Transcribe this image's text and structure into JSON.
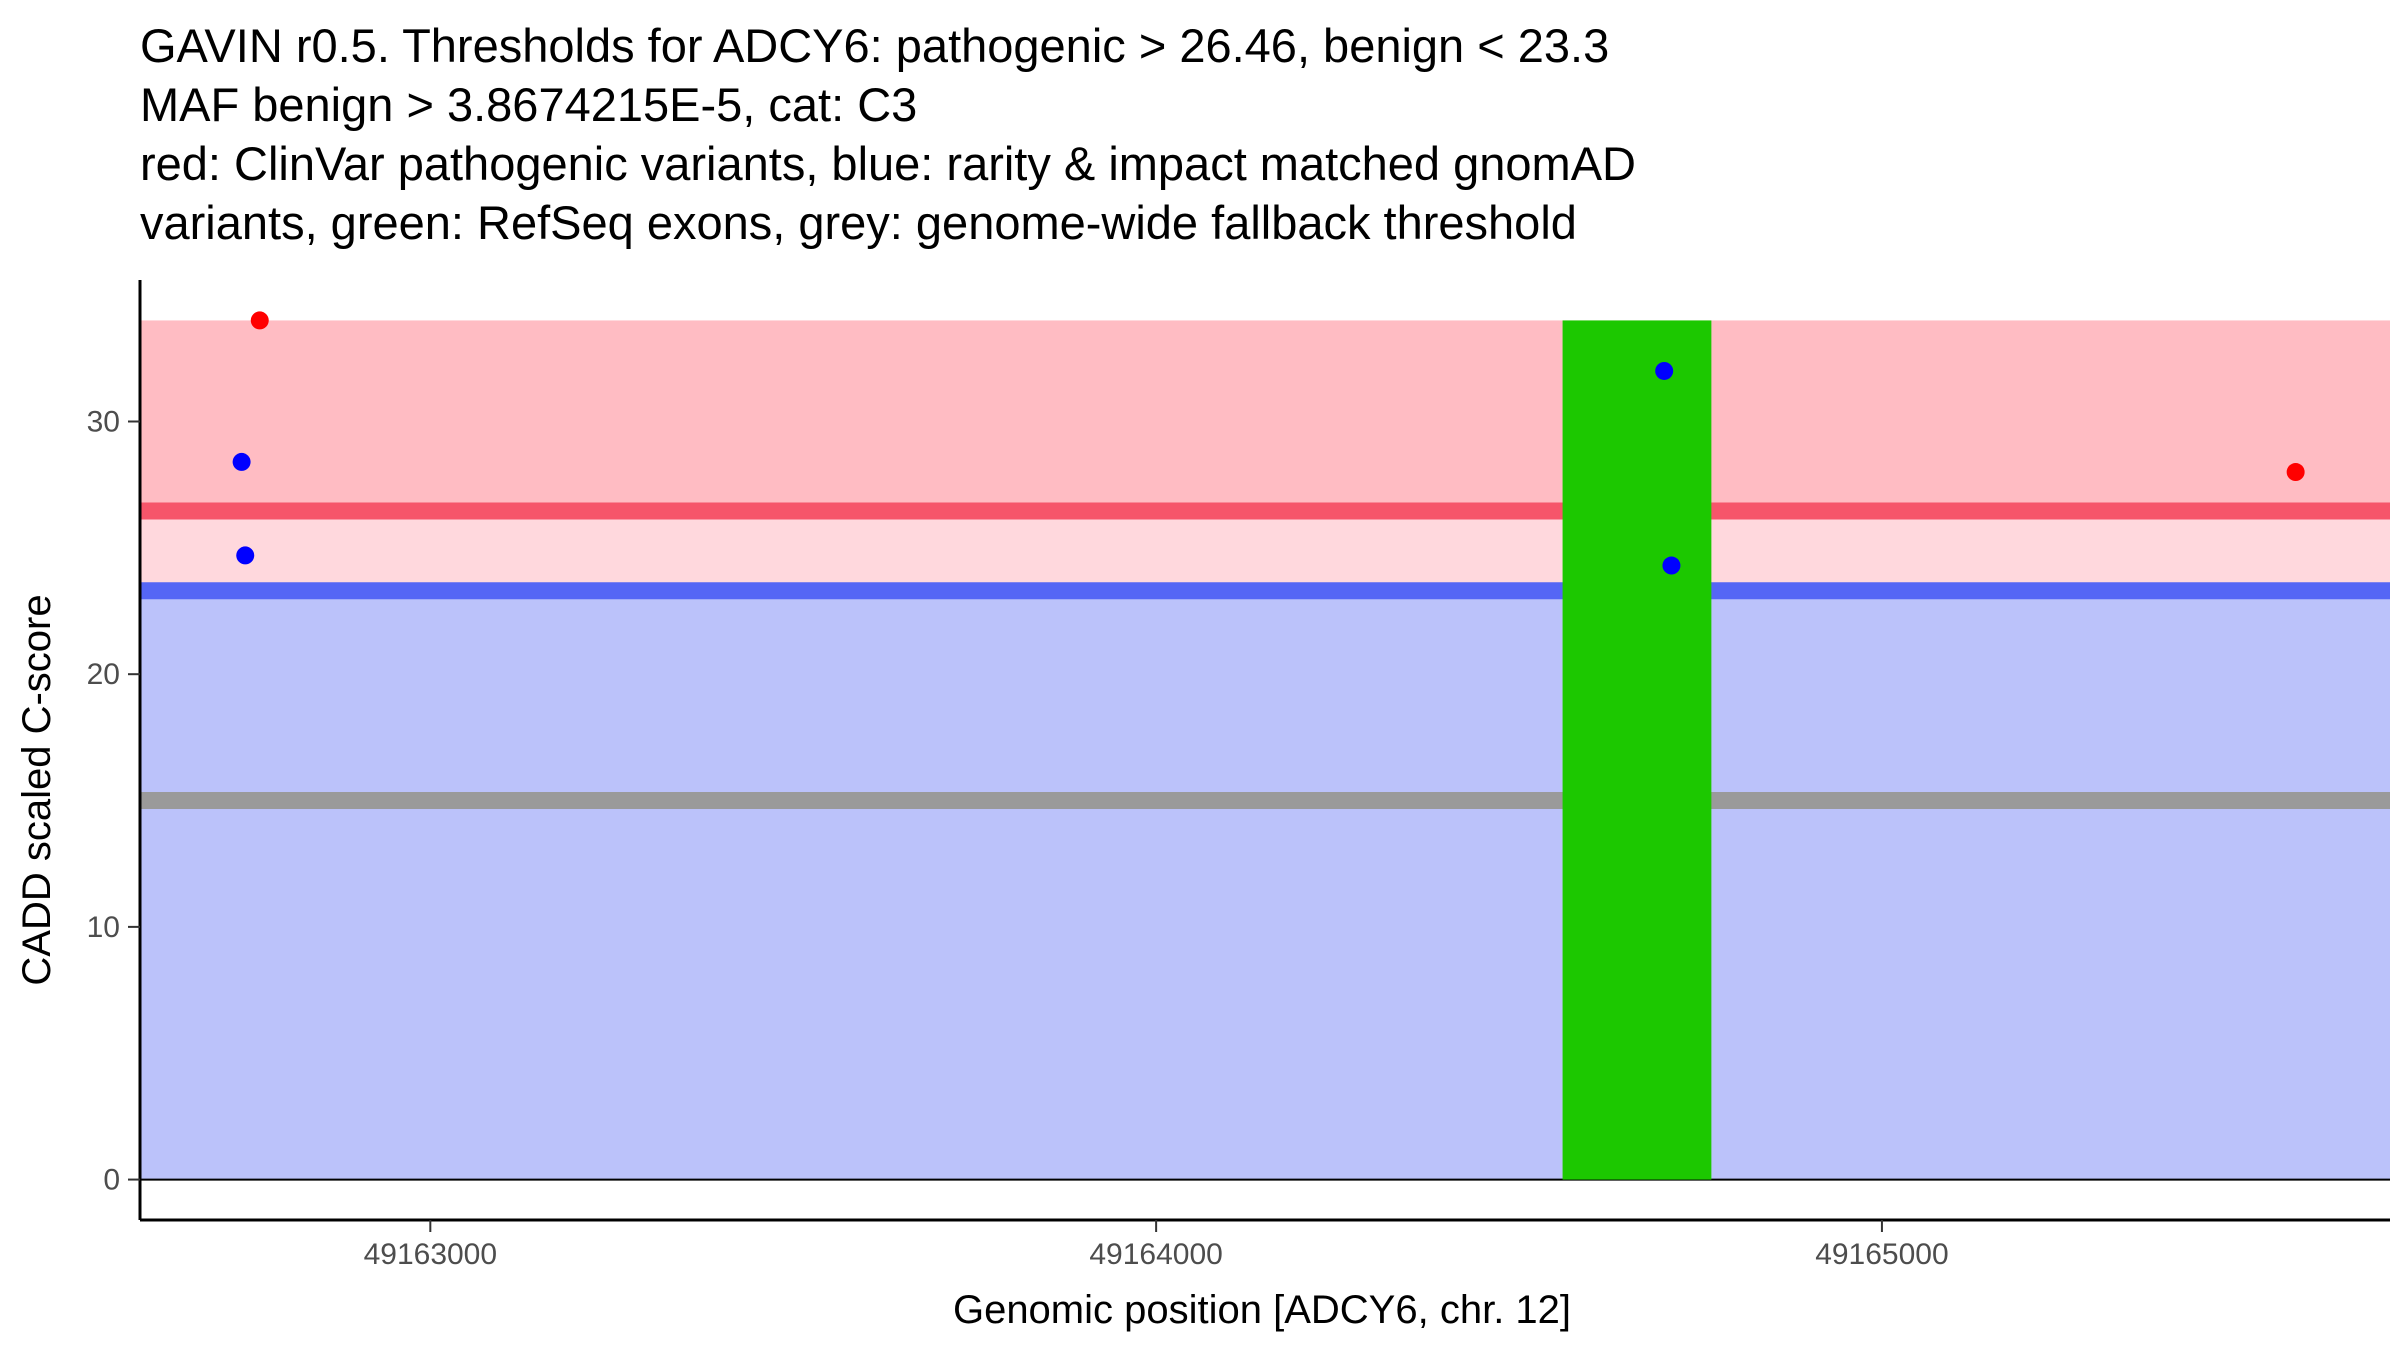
{
  "chart_data": {
    "type": "scatter",
    "title": [
      "GAVIN r0.5. Thresholds for ADCY6: pathogenic > 26.46, benign < 23.3",
      "MAF benign > 3.8674215E-5, cat: C3",
      "red: ClinVar pathogenic variants, blue: rarity & impact matched gnomAD",
      "variants, green: RefSeq exons, grey: genome-wide fallback threshold"
    ],
    "xlabel": "Genomic position [ADCY6, chr. 12]",
    "ylabel": "CADD scaled C-score",
    "xlim": [
      49162600,
      49165700
    ],
    "ylim": [
      -1.6,
      35.6
    ],
    "xticks": [
      49163000,
      49164000,
      49165000
    ],
    "yticks": [
      0,
      10,
      20,
      30
    ],
    "grid": false,
    "y_max_band": 34,
    "thresholds": {
      "pathogenic": 26.46,
      "benign": 23.3,
      "fallback": 15
    },
    "exon": {
      "start": 49164560,
      "end": 49164765
    },
    "series": [
      {
        "name": "ClinVar pathogenic variants",
        "color": "#ff0000",
        "points": [
          {
            "x": 49162765,
            "y": 34.0
          },
          {
            "x": 49165570,
            "y": 28.0
          }
        ]
      },
      {
        "name": "gnomAD variants",
        "color": "#0000ff",
        "points": [
          {
            "x": 49162740,
            "y": 28.4
          },
          {
            "x": 49162745,
            "y": 24.7
          },
          {
            "x": 49164700,
            "y": 32.0
          },
          {
            "x": 49164710,
            "y": 24.3
          }
        ]
      }
    ],
    "colors": {
      "pathogenic_band": "#ffbcc3",
      "intermediate_band": "#ffd8dd",
      "benign_band": "#bbc2fa",
      "pathogenic_line": "#f6556a",
      "benign_line": "#5566f5",
      "fallback_line": "#9a9a9a",
      "exon": "#1cc800"
    }
  }
}
